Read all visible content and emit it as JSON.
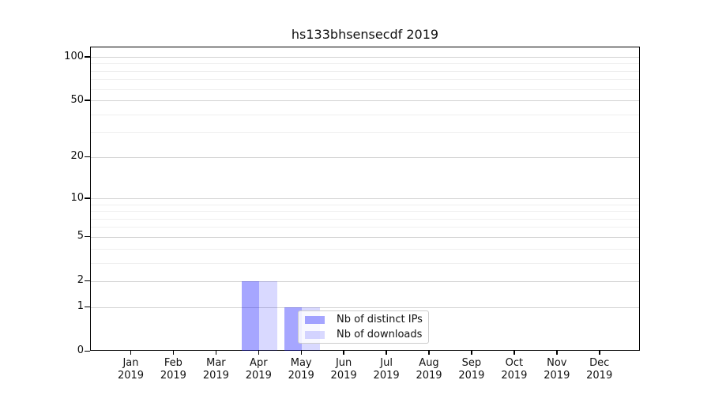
{
  "chart_data": {
    "type": "bar",
    "title": "hs133bhsensecdf 2019",
    "xlabel": "",
    "ylabel": "",
    "x_tick_months": [
      "Jan",
      "Feb",
      "Mar",
      "Apr",
      "May",
      "Jun",
      "Jul",
      "Aug",
      "Sep",
      "Oct",
      "Nov",
      "Dec"
    ],
    "x_tick_year": "2019",
    "series": [
      {
        "name": "Nb of distinct IPs",
        "color": "rgba(0,0,255,0.35)",
        "values": [
          0,
          0,
          0,
          2,
          1,
          0,
          0,
          0,
          0,
          0,
          0,
          0
        ]
      },
      {
        "name": "Nb of downloads",
        "color": "rgba(0,0,255,0.15)",
        "values": [
          0,
          0,
          0,
          2,
          1,
          0,
          0,
          0,
          0,
          0,
          0,
          0
        ]
      }
    ],
    "y_scale": "log1p",
    "y_major_ticks": [
      0,
      1,
      2,
      5,
      10,
      20,
      50,
      100
    ],
    "y_minor_gridlines": [
      3,
      4,
      6,
      7,
      8,
      9,
      30,
      40,
      60,
      70,
      80,
      90
    ],
    "ylim": [
      0,
      116
    ],
    "grid": "on",
    "legend_position": "lower center-right inside plot",
    "colors": {
      "grid_major": "#d2d2d2",
      "grid_minor": "#efefef",
      "spine": "#000000",
      "background": "#ffffff"
    }
  }
}
